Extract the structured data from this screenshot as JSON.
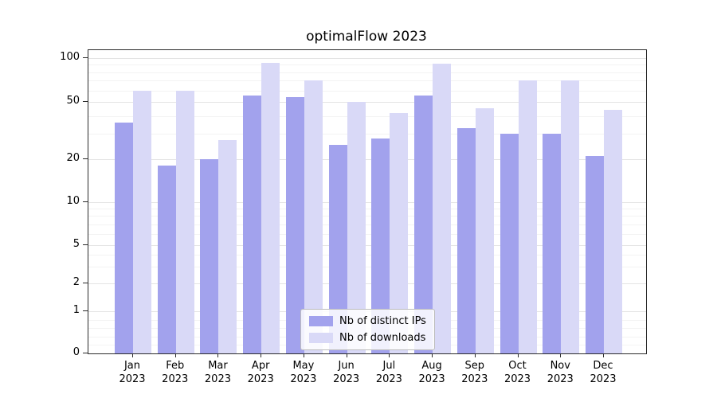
{
  "chart_data": {
    "type": "bar",
    "title": "optimalFlow 2023",
    "year": "2023",
    "categories": [
      "Jan",
      "Feb",
      "Mar",
      "Apr",
      "May",
      "Jun",
      "Jul",
      "Aug",
      "Sep",
      "Oct",
      "Nov",
      "Dec"
    ],
    "series": [
      {
        "name": "Nb of distinct IPs",
        "color": "#a2a2ed",
        "values": [
          36,
          18,
          20,
          55,
          54,
          25,
          28,
          55,
          33,
          30,
          30,
          21
        ]
      },
      {
        "name": "Nb of downloads",
        "color": "#d9d9f7",
        "values": [
          60,
          60,
          27,
          93,
          70,
          50,
          42,
          92,
          45,
          70,
          70,
          44
        ]
      }
    ],
    "yscale": "symlog",
    "yticks": [
      0,
      1,
      2,
      5,
      10,
      20,
      50,
      100
    ],
    "ylim": [
      0,
      110
    ],
    "xlabel": "",
    "ylabel": "",
    "grid": true,
    "legend_position": "lower center"
  }
}
